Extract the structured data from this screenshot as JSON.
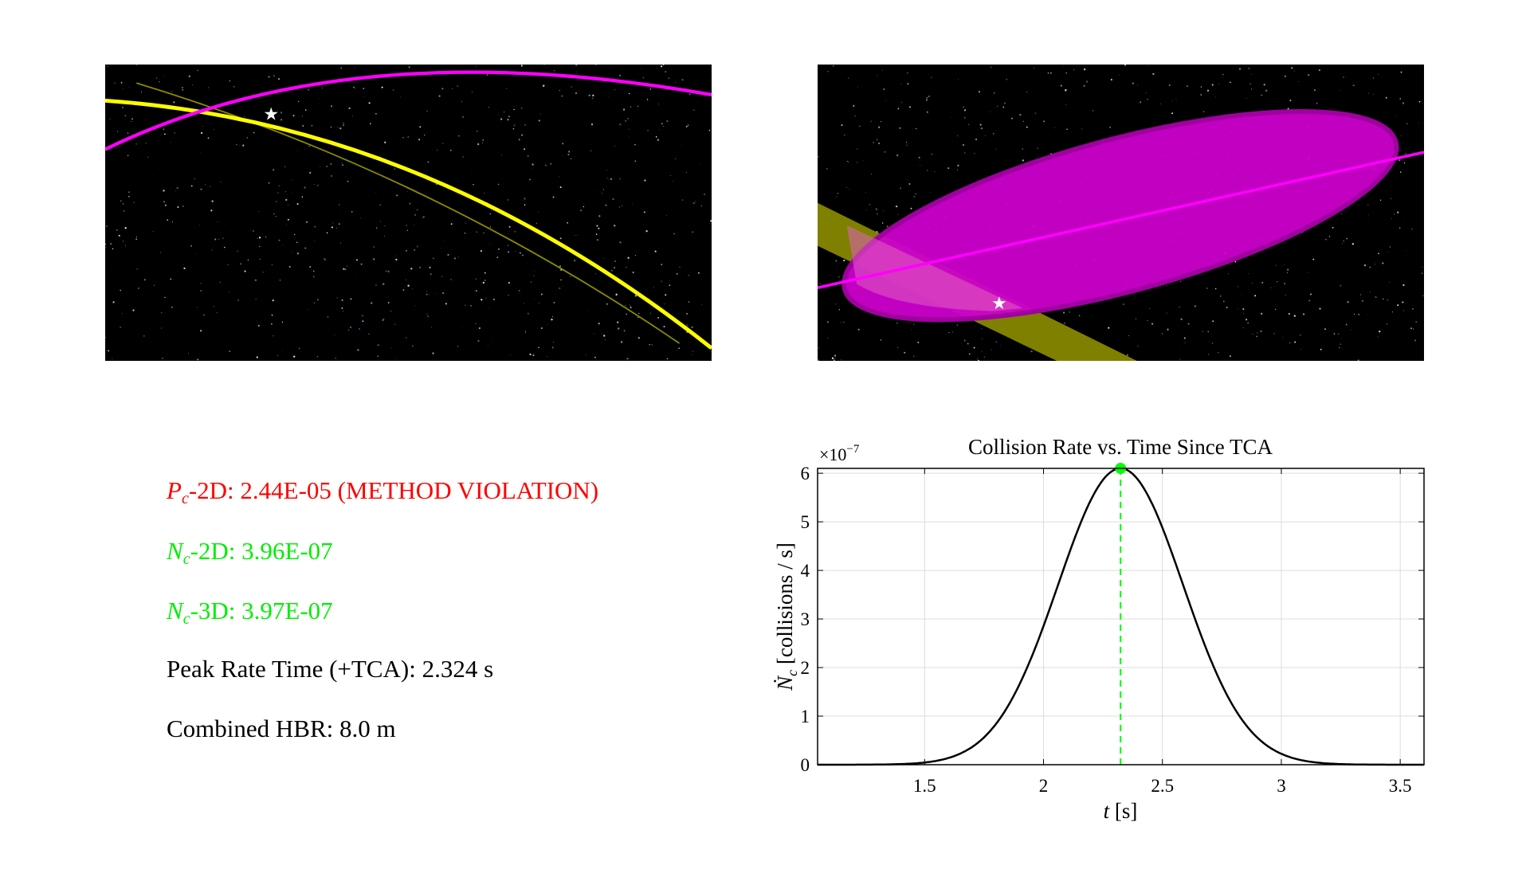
{
  "images": {
    "left": {
      "orbit_colors": {
        "primary": "#ffff00",
        "secondary": "#ff00ff"
      },
      "marker": "star-icon"
    },
    "right": {
      "ellipse_color": "#cc00cc",
      "band_color": "#808000",
      "line_color": "#ff00ff",
      "marker": "star-icon"
    }
  },
  "stats": [
    {
      "symbol": "P",
      "subscript": "c",
      "text": "-2D: 2.44E-05 (METHOD VIOLATION)",
      "color": "#ff0000"
    },
    {
      "symbol": "N",
      "subscript": "c",
      "text": "-2D: 3.96E-07",
      "color": "#00ee00"
    },
    {
      "symbol": "N",
      "subscript": "c",
      "text": "-3D: 3.97E-07",
      "color": "#00ee00"
    },
    {
      "symbol": "",
      "subscript": "",
      "text": "Peak Rate Time (+TCA): 2.324 s",
      "color": "#000000"
    },
    {
      "symbol": "",
      "subscript": "",
      "text": "Combined HBR: 8.0 m",
      "color": "#000000"
    }
  ],
  "chart_data": {
    "type": "line",
    "title": "Collision Rate vs. Time Since TCA",
    "xlabel": "t [s]",
    "ylabel": "Ṅc [collisions / s]",
    "y_exponent_label": "×10^-7",
    "xlim": [
      1.05,
      3.6
    ],
    "ylim": [
      0,
      6.1
    ],
    "xticks": [
      "1.5",
      "2",
      "2.5",
      "3",
      "3.5"
    ],
    "yticks": [
      "0",
      "1",
      "2",
      "3",
      "4",
      "5",
      "6"
    ],
    "grid": true,
    "series": [
      {
        "color": "#000000",
        "shape": "gaussian",
        "peak_t": 2.324,
        "peak_value": 6.1,
        "sigma": 0.263
      }
    ],
    "peak_marker": {
      "t": 2.324,
      "value": 6.1,
      "color": "#00ff00",
      "line_style": "dashed"
    }
  }
}
